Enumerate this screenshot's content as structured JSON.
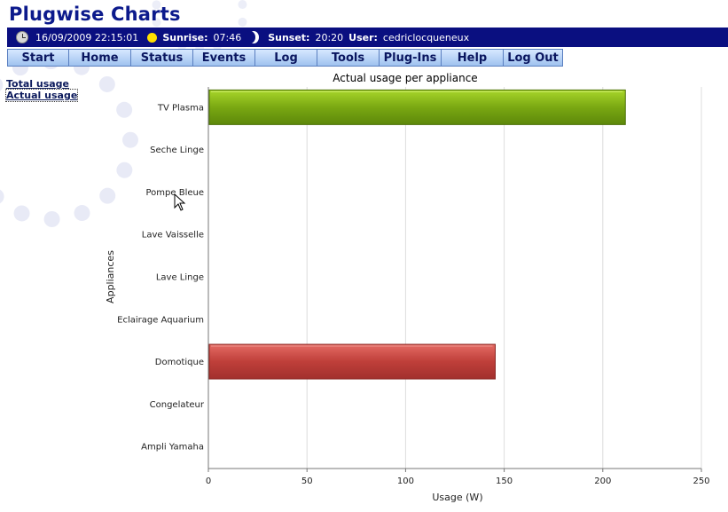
{
  "app": {
    "title": "Plugwise Charts"
  },
  "status": {
    "datetime": "16/09/2009 22:15:01",
    "sunrise_label": "Sunrise:",
    "sunrise_value": "07:46",
    "sunset_label": "Sunset:",
    "sunset_value": "20:20",
    "user_label": "User:",
    "user_value": "cedriclocqueneux"
  },
  "nav": {
    "items": [
      "Start",
      "Home",
      "Status",
      "Events",
      "Log",
      "Tools",
      "Plug-Ins",
      "Help",
      "Log Out"
    ]
  },
  "sidebar": {
    "links": [
      "Total usage",
      "Actual usage"
    ]
  },
  "chart_data": {
    "type": "bar",
    "orientation": "horizontal",
    "title": "Actual usage per appliance",
    "xlabel": "Usage (W)",
    "ylabel": "Appliances",
    "xlim": [
      0,
      250
    ],
    "xticks": [
      0,
      50,
      100,
      150,
      200,
      250
    ],
    "grid": true,
    "categories": [
      "TV Plasma",
      "Seche Linge",
      "Pompe Bleue",
      "Lave Vaisselle",
      "Lave Linge",
      "Eclairage Aquarium",
      "Domotique",
      "Congelateur",
      "Ampli Yamaha"
    ],
    "values": [
      211,
      0,
      0,
      0,
      0,
      0,
      145,
      0,
      0
    ],
    "colors": [
      "#6e9a0c",
      "#6e9a0c",
      "#6e9a0c",
      "#6e9a0c",
      "#6e9a0c",
      "#6e9a0c",
      "#b83a36",
      "#6e9a0c",
      "#6e9a0c"
    ]
  }
}
